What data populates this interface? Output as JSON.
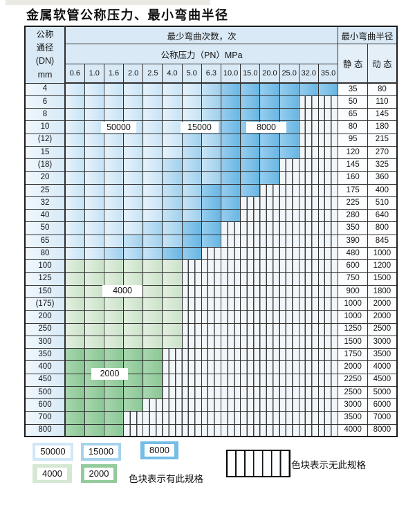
{
  "page_title": "金属软管公称压力、最小弯曲半径",
  "table": {
    "dn_header_lines": [
      "公称",
      "通径",
      "(DN)",
      "mm"
    ],
    "cycles_header": "最少弯曲次数，次",
    "pressure_header": "公称压力（PN）MPa",
    "pressure_columns": [
      "0.6",
      "1.0",
      "1.6",
      "2.0",
      "2.5",
      "4.0",
      "5.0",
      "6.3",
      "10.0",
      "15.0",
      "20.0",
      "25.0",
      "32.0",
      "35.0"
    ],
    "radius_header": "最小弯曲半径",
    "static_header": "静 态",
    "dynamic_header": "动 态",
    "shade_cycles": {
      "blue-light": "50000",
      "blue-mid": "15000",
      "blue-dark": "8000",
      "green-light": "4000",
      "green-mid": "2000"
    },
    "rows": [
      {
        "dn": "4",
        "shades": [
          [
            "blue-light",
            7
          ],
          [
            "blue-mid",
            1
          ],
          [
            "blue-dark",
            6
          ]
        ],
        "static": "35",
        "dynamic": "80"
      },
      {
        "dn": "6",
        "shades": [
          [
            "blue-light",
            7
          ],
          [
            "blue-mid",
            1
          ],
          [
            "blue-dark",
            4
          ]
        ],
        "static": "50",
        "dynamic": "110"
      },
      {
        "dn": "8",
        "shades": [
          [
            "blue-light",
            7
          ],
          [
            "blue-mid",
            1
          ],
          [
            "blue-dark",
            4
          ]
        ],
        "static": "65",
        "dynamic": "145"
      },
      {
        "dn": "10",
        "shades": [
          [
            "blue-light",
            6
          ],
          [
            "blue-mid",
            2
          ],
          [
            "blue-dark",
            4
          ]
        ],
        "static": "80",
        "dynamic": "180"
      },
      {
        "dn": "(12)",
        "shades": [
          [
            "blue-light",
            6
          ],
          [
            "blue-mid",
            2
          ],
          [
            "blue-dark",
            4
          ]
        ],
        "static": "95",
        "dynamic": "215"
      },
      {
        "dn": "15",
        "shades": [
          [
            "blue-light",
            6
          ],
          [
            "blue-mid",
            2
          ],
          [
            "blue-dark",
            4
          ]
        ],
        "static": "120",
        "dynamic": "270"
      },
      {
        "dn": "(18)",
        "shades": [
          [
            "blue-light",
            5
          ],
          [
            "blue-mid",
            3
          ],
          [
            "blue-dark",
            3
          ]
        ],
        "static": "145",
        "dynamic": "325"
      },
      {
        "dn": "20",
        "shades": [
          [
            "blue-light",
            5
          ],
          [
            "blue-mid",
            3
          ],
          [
            "blue-dark",
            3
          ]
        ],
        "static": "160",
        "dynamic": "360"
      },
      {
        "dn": "25",
        "shades": [
          [
            "blue-light",
            5
          ],
          [
            "blue-mid",
            2
          ],
          [
            "blue-dark",
            3
          ]
        ],
        "static": "175",
        "dynamic": "400"
      },
      {
        "dn": "32",
        "shades": [
          [
            "blue-light",
            5
          ],
          [
            "blue-mid",
            2
          ],
          [
            "blue-dark",
            2
          ]
        ],
        "static": "225",
        "dynamic": "510"
      },
      {
        "dn": "40",
        "shades": [
          [
            "blue-light",
            5
          ],
          [
            "blue-mid",
            2
          ],
          [
            "blue-dark",
            2
          ]
        ],
        "static": "280",
        "dynamic": "640"
      },
      {
        "dn": "50",
        "shades": [
          [
            "blue-light",
            4
          ],
          [
            "blue-mid",
            2
          ],
          [
            "blue-dark",
            2
          ]
        ],
        "static": "350",
        "dynamic": "800"
      },
      {
        "dn": "65",
        "shades": [
          [
            "blue-light",
            3
          ],
          [
            "blue-mid",
            3
          ],
          [
            "blue-dark",
            2
          ]
        ],
        "static": "390",
        "dynamic": "845"
      },
      {
        "dn": "80",
        "shades": [
          [
            "blue-light",
            2
          ],
          [
            "blue-mid",
            3
          ],
          [
            "blue-dark",
            2
          ]
        ],
        "static": "480",
        "dynamic": "1000"
      },
      {
        "dn": "100",
        "shades": [
          [
            "green-light",
            6
          ]
        ],
        "static": "600",
        "dynamic": "1200"
      },
      {
        "dn": "125",
        "shades": [
          [
            "green-light",
            6
          ]
        ],
        "static": "750",
        "dynamic": "1500"
      },
      {
        "dn": "150",
        "shades": [
          [
            "green-light",
            6
          ]
        ],
        "static": "900",
        "dynamic": "1800"
      },
      {
        "dn": "(175)",
        "shades": [
          [
            "green-light",
            6
          ]
        ],
        "static": "1000",
        "dynamic": "2000"
      },
      {
        "dn": "200",
        "shades": [
          [
            "green-light",
            6
          ]
        ],
        "static": "1000",
        "dynamic": "2000"
      },
      {
        "dn": "250",
        "shades": [
          [
            "green-light",
            6
          ]
        ],
        "static": "1250",
        "dynamic": "2500"
      },
      {
        "dn": "300",
        "shades": [
          [
            "green-light",
            6
          ]
        ],
        "static": "1500",
        "dynamic": "3000"
      },
      {
        "dn": "350",
        "shades": [
          [
            "green-mid",
            5
          ]
        ],
        "static": "1750",
        "dynamic": "3500"
      },
      {
        "dn": "400",
        "shades": [
          [
            "green-mid",
            5
          ]
        ],
        "static": "2000",
        "dynamic": "4000"
      },
      {
        "dn": "450",
        "shades": [
          [
            "green-mid",
            5
          ]
        ],
        "static": "2250",
        "dynamic": "4500"
      },
      {
        "dn": "500",
        "shades": [
          [
            "green-mid",
            5
          ]
        ],
        "static": "2500",
        "dynamic": "5000"
      },
      {
        "dn": "600",
        "shades": [
          [
            "green-mid",
            4
          ]
        ],
        "static": "3000",
        "dynamic": "6000"
      },
      {
        "dn": "700",
        "shades": [
          [
            "green-mid",
            3
          ]
        ],
        "static": "3500",
        "dynamic": "7000"
      },
      {
        "dn": "800",
        "shades": [
          [
            "green-mid",
            3
          ]
        ],
        "static": "4000",
        "dynamic": "8000"
      }
    ]
  },
  "in_table_labels": [
    "50000",
    "15000",
    "8000",
    "4000",
    "2000"
  ],
  "legend": {
    "swatches": [
      {
        "value": "50000",
        "shade": "blue-light"
      },
      {
        "value": "15000",
        "shade": "blue-mid"
      },
      {
        "value": "8000",
        "shade": "blue-dark"
      },
      {
        "value": "4000",
        "shade": "green-light"
      },
      {
        "value": "2000",
        "shade": "green-mid"
      }
    ],
    "has_spec_text": "色块表示有此规格",
    "no_spec_text": "色块表示无此规格"
  },
  "colors": {
    "cycles_50000": "#cfe7f7",
    "cycles_15000": "#a5d3ee",
    "cycles_8000": "#74bde6",
    "cycles_4000": "#d5e8d3",
    "cycles_2000": "#93cb9c",
    "header_fill": "#d9e9f5",
    "grid_line": "#2f2f2f"
  }
}
